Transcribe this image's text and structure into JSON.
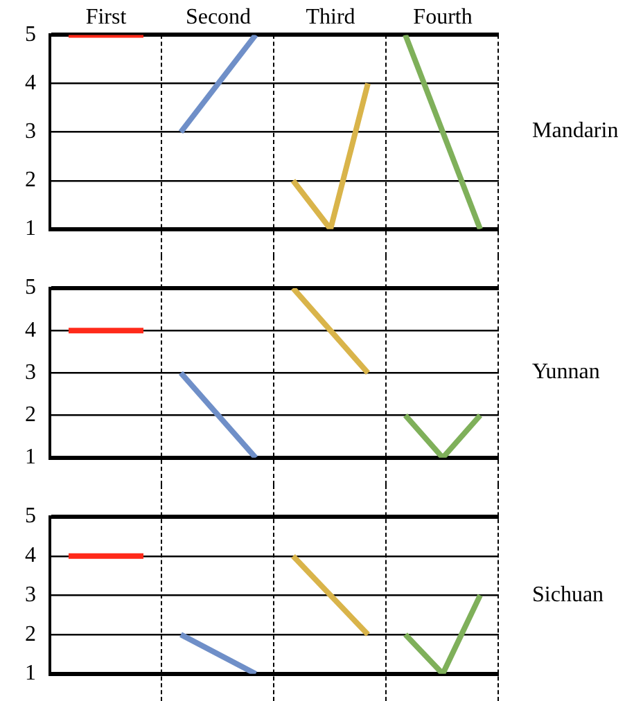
{
  "chart_data": [
    {
      "type": "line",
      "y2label": "Mandarin",
      "categories": [
        null,
        "First",
        null,
        null,
        "Second",
        null,
        null,
        "Third",
        null,
        null,
        "Fourth",
        null
      ],
      "ylim": [
        1,
        5
      ],
      "yticks": [
        1,
        2,
        3,
        4,
        5
      ],
      "grid": "y",
      "legend": false,
      "marker": "none",
      "line_style": "solid",
      "series": [
        {
          "color": "#ff2a1a",
          "values": [
            5,
            null,
            5,
            null,
            null,
            null,
            null,
            null,
            null,
            null,
            null,
            null
          ]
        },
        {
          "color": "#6f8fc8",
          "values": [
            null,
            null,
            null,
            3,
            null,
            5,
            null,
            null,
            null,
            null,
            null,
            null
          ]
        },
        {
          "color": "#d9b44a",
          "values": [
            null,
            null,
            null,
            null,
            null,
            null,
            2,
            1,
            4,
            null,
            null,
            null
          ]
        },
        {
          "color": "#7fb05a",
          "values": [
            null,
            null,
            null,
            null,
            null,
            null,
            null,
            null,
            null,
            5,
            null,
            1
          ]
        }
      ]
    },
    {
      "type": "line",
      "y2label": "Yunnan",
      "categories": [
        null,
        null,
        null,
        null,
        null,
        null,
        null,
        null,
        null,
        null,
        null,
        null
      ],
      "ylim": [
        1,
        5
      ],
      "yticks": [
        1,
        2,
        3,
        4,
        5
      ],
      "tick_labels": "y",
      "grid": "y",
      "legend": false,
      "marker": "none",
      "line_style": "solid",
      "series": [
        {
          "color": "#ff2a1a",
          "values": [
            4,
            null,
            4,
            null,
            null,
            null,
            null,
            null,
            null,
            null,
            null,
            null
          ]
        },
        {
          "color": "#6f8fc8",
          "values": [
            null,
            null,
            null,
            3,
            null,
            1,
            null,
            null,
            null,
            null,
            null,
            null
          ]
        },
        {
          "color": "#d9b44a",
          "values": [
            null,
            null,
            null,
            null,
            null,
            null,
            5,
            null,
            3,
            null,
            null,
            null
          ]
        },
        {
          "color": "#7fb05a",
          "values": [
            null,
            null,
            null,
            null,
            null,
            null,
            null,
            null,
            null,
            2,
            1,
            2
          ]
        }
      ]
    },
    {
      "type": "line",
      "y2label": "Sichuan",
      "categories": [
        null,
        null,
        null,
        null,
        null,
        null,
        null,
        null,
        null,
        null,
        null,
        null
      ],
      "ylim": [
        1,
        5
      ],
      "yticks": [
        1,
        2,
        3,
        4,
        5
      ],
      "tick_labels": "y",
      "grid": "y",
      "legend": false,
      "marker": "none",
      "line_style": "solid",
      "series": [
        {
          "color": "#ff2a1a",
          "values": [
            4,
            null,
            4,
            null,
            null,
            null,
            null,
            null,
            null,
            null,
            null,
            null
          ]
        },
        {
          "color": "#6f8fc8",
          "values": [
            null,
            null,
            null,
            2,
            null,
            1,
            null,
            null,
            null,
            null,
            null,
            null
          ]
        },
        {
          "color": "#d9b44a",
          "values": [
            null,
            null,
            null,
            null,
            null,
            null,
            4,
            null,
            2,
            null,
            null,
            null
          ]
        },
        {
          "color": "#7fb05a",
          "values": [
            null,
            null,
            null,
            null,
            null,
            null,
            null,
            null,
            null,
            2,
            1,
            3
          ]
        }
      ]
    }
  ]
}
